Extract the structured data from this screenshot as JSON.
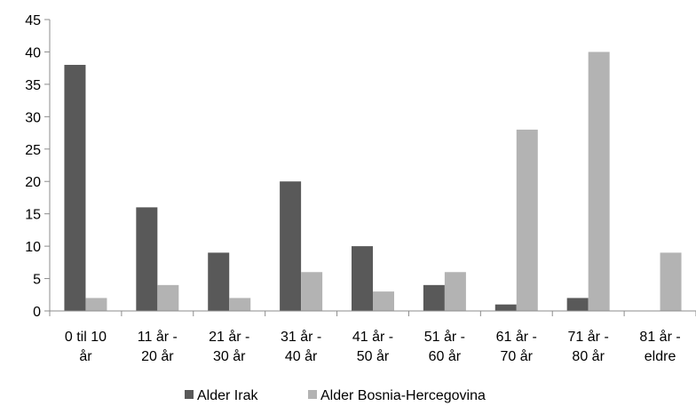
{
  "chart_data": {
    "type": "bar",
    "categories": [
      [
        "0 til 10",
        "år"
      ],
      [
        "11 år -",
        "20 år"
      ],
      [
        "21 år -",
        "30 år"
      ],
      [
        "31 år -",
        "40 år"
      ],
      [
        "41 år -",
        "50 år"
      ],
      [
        "51 år -",
        "60 år"
      ],
      [
        "61 år -",
        "70 år"
      ],
      [
        "71 år -",
        "80 år"
      ],
      [
        "81 år -",
        "eldre"
      ]
    ],
    "series": [
      {
        "name": "Alder Irak",
        "color": "#595959",
        "values": [
          38,
          16,
          9,
          20,
          10,
          4,
          1,
          2,
          0
        ]
      },
      {
        "name": "Alder Bosnia-Hercegovina",
        "color": "#b3b3b3",
        "values": [
          2,
          4,
          2,
          6,
          3,
          6,
          28,
          40,
          9
        ]
      }
    ],
    "yticks": [
      0,
      5,
      10,
      15,
      20,
      25,
      30,
      35,
      40,
      45
    ],
    "ylim": [
      0,
      45
    ],
    "grid": false,
    "legend_position": "bottom"
  }
}
